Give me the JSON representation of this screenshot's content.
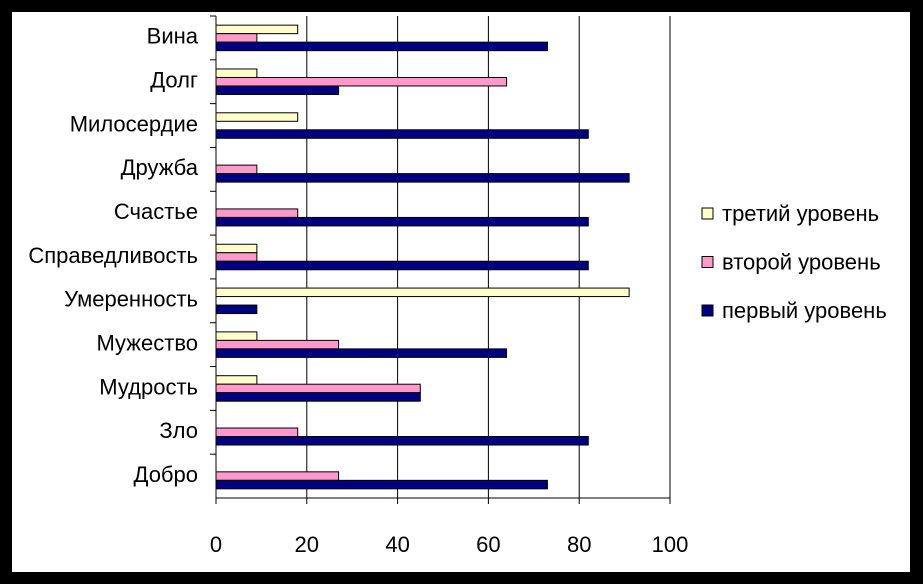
{
  "chart_data": {
    "type": "bar",
    "orientation": "horizontal",
    "categories": [
      "Вина",
      "Долг",
      "Милосердие",
      "Дружба",
      "Счастье",
      "Справедливость",
      "Умеренность",
      "Мужество",
      "Мудрость",
      "Зло",
      "Добро"
    ],
    "series": [
      {
        "name": "третий уровень",
        "color": "#ffffcc",
        "values": [
          18,
          9,
          18,
          0,
          0,
          9,
          91,
          9,
          9,
          0,
          0
        ]
      },
      {
        "name": "второй уровень",
        "color": "#ff99cc",
        "values": [
          9,
          64,
          0,
          9,
          18,
          9,
          0,
          27,
          45,
          18,
          27
        ]
      },
      {
        "name": "первый уровень",
        "color": "#000080",
        "values": [
          73,
          27,
          82,
          91,
          82,
          82,
          9,
          64,
          45,
          82,
          73
        ]
      }
    ],
    "xlim": [
      0,
      100
    ],
    "xticks": [
      0,
      20,
      40,
      60,
      80,
      100
    ],
    "grid": true,
    "legend": "right"
  }
}
